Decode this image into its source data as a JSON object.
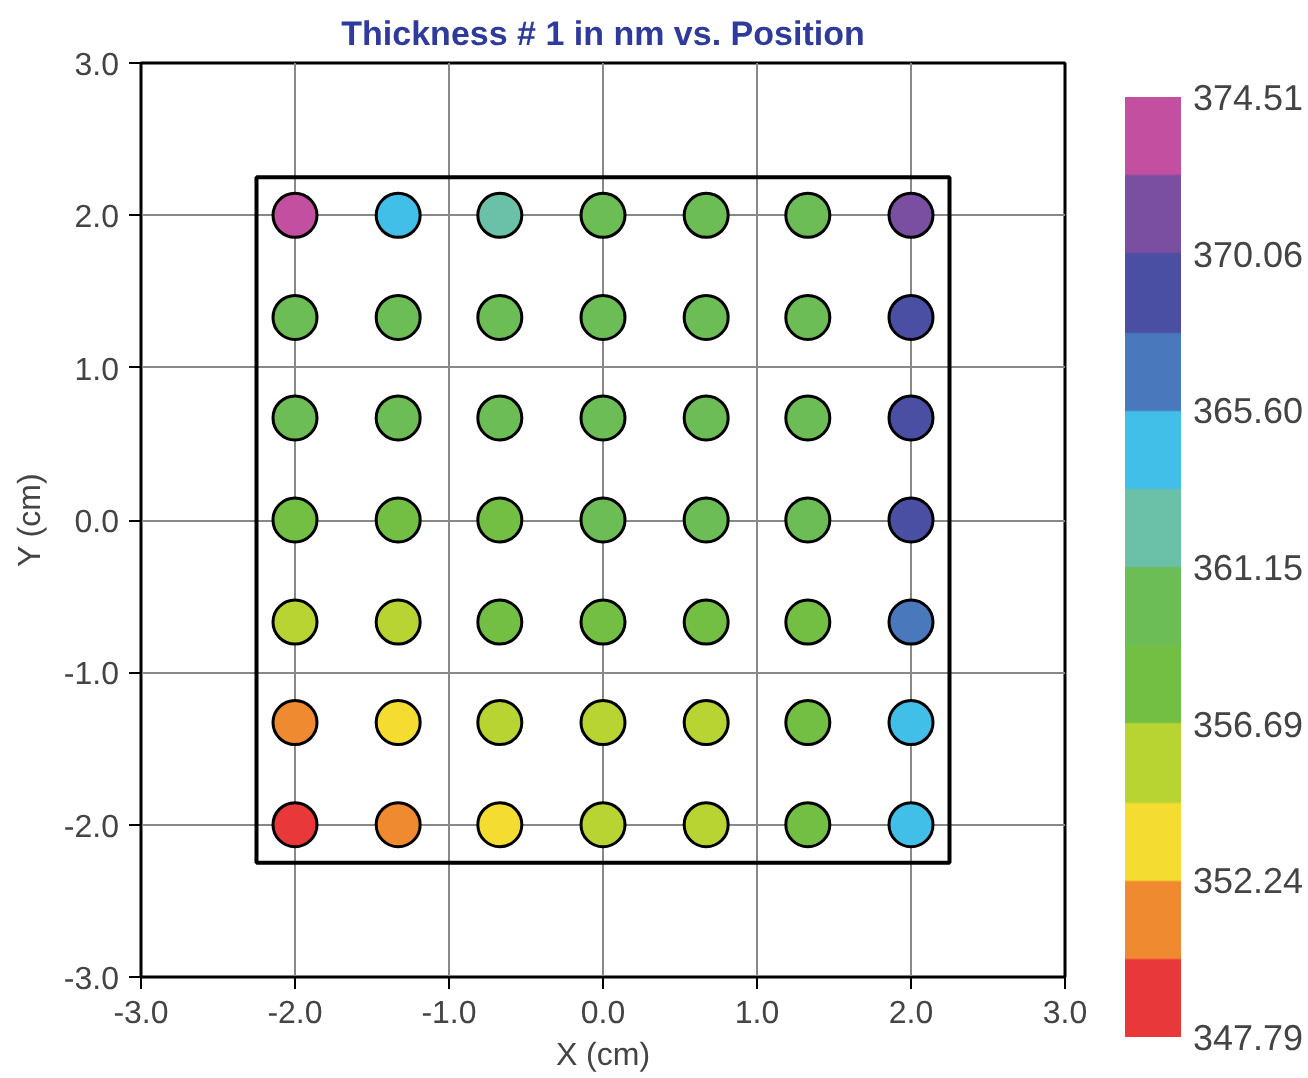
{
  "chart_data": {
    "type": "scatter",
    "title": "Thickness # 1 in nm vs. Position",
    "xlabel": "X (cm)",
    "ylabel": "Y (cm)",
    "x": [
      -2,
      -1.33,
      -0.67,
      0,
      0.67,
      1.33,
      2,
      -2,
      -1.33,
      -0.67,
      0,
      0.67,
      1.33,
      2,
      -2,
      -1.33,
      -0.67,
      0,
      0.67,
      1.33,
      2,
      -2,
      -1.33,
      -0.67,
      0,
      0.67,
      1.33,
      2,
      -2,
      -1.33,
      -0.67,
      0,
      0.67,
      1.33,
      2,
      -2,
      -1.33,
      -0.67,
      0,
      0.67,
      1.33,
      2,
      -2,
      -1.33,
      -0.67,
      0,
      0.67,
      1.33,
      2
    ],
    "values": [
      2,
      2,
      2,
      2,
      2,
      2,
      2,
      1.33,
      1.33,
      1.33,
      1.33,
      1.33,
      1.33,
      1.33,
      0.67,
      0.67,
      0.67,
      0.67,
      0.67,
      0.67,
      0.67,
      0,
      0,
      0,
      0,
      0,
      0,
      0,
      -0.67,
      -0.67,
      -0.67,
      -0.67,
      -0.67,
      -0.67,
      -0.67,
      -1.33,
      -1.33,
      -1.33,
      -1.33,
      -1.33,
      -1.33,
      -1.33,
      -2,
      -2,
      -2,
      -2,
      -2,
      -2,
      -2
    ],
    "cvalues": [
      373.5,
      364,
      362,
      360.5,
      360,
      360,
      372,
      360,
      360,
      360.5,
      360,
      360,
      360,
      369,
      359.5,
      359.5,
      359.5,
      359.8,
      360,
      360,
      369,
      358,
      358,
      358.5,
      359,
      359.5,
      360,
      368.5,
      355,
      356,
      357,
      357.5,
      358,
      358.5,
      367,
      351.5,
      353,
      355,
      356,
      356.5,
      357.5,
      365,
      348.5,
      351,
      353.5,
      355,
      355.5,
      357.5,
      364
    ],
    "colors": [
      "#c24f9f",
      "#42bfe8",
      "#6bc0a8",
      "#6cbd55",
      "#6cbd55",
      "#6cbd55",
      "#7a4ea0",
      "#6cbd55",
      "#6cbd55",
      "#6cbd55",
      "#6cbd55",
      "#6cbd55",
      "#6cbd55",
      "#4a4fa3",
      "#6cbd55",
      "#6cbd55",
      "#6cbd55",
      "#6cbd55",
      "#6cbd55",
      "#6cbd55",
      "#4a4fa3",
      "#72bf44",
      "#72bf44",
      "#72bf44",
      "#6cbd55",
      "#6cbd55",
      "#6cbd55",
      "#4a4fa3",
      "#b7d433",
      "#b7d433",
      "#72bf44",
      "#72bf44",
      "#72bf44",
      "#72bf44",
      "#4a78bd",
      "#f08a30",
      "#f5dc30",
      "#b7d433",
      "#b7d433",
      "#b7d433",
      "#72bf44",
      "#42bfe8",
      "#e8383a",
      "#f08a30",
      "#f5dc30",
      "#b7d433",
      "#b7d433",
      "#72bf44",
      "#42bfe8"
    ],
    "color": "#000000",
    "marker": "circle",
    "clim": [
      347.79,
      374.51
    ],
    "cticks": [
      {
        "value": 347.79,
        "label": "347.79"
      },
      {
        "value": 352.24,
        "label": "352.24"
      },
      {
        "value": 356.69,
        "label": "356.69"
      },
      {
        "value": 361.15,
        "label": "361.15"
      },
      {
        "value": 365.6,
        "label": "365.60"
      },
      {
        "value": 370.06,
        "label": "370.06"
      },
      {
        "value": 374.51,
        "label": "374.51"
      }
    ],
    "xlim": [
      -3,
      3
    ],
    "ylim": [
      -3,
      3
    ],
    "xticks": [
      {
        "value": -3,
        "label": "-3.0"
      },
      {
        "value": -2,
        "label": "-2.0"
      },
      {
        "value": -1,
        "label": "-1.0"
      },
      {
        "value": 0,
        "label": "0.0"
      },
      {
        "value": 1,
        "label": "1.0"
      },
      {
        "value": 2,
        "label": "2.0"
      },
      {
        "value": 3,
        "label": "3.0"
      }
    ],
    "yticks": [
      {
        "value": -3,
        "label": "-3.0"
      },
      {
        "value": -2,
        "label": "-2.0"
      },
      {
        "value": -1,
        "label": "-1.0"
      },
      {
        "value": 0,
        "label": "0.0"
      },
      {
        "value": 1,
        "label": "1.0"
      },
      {
        "value": 2,
        "label": "2.0"
      },
      {
        "value": 3,
        "label": "3.0"
      }
    ],
    "grid": true
  }
}
